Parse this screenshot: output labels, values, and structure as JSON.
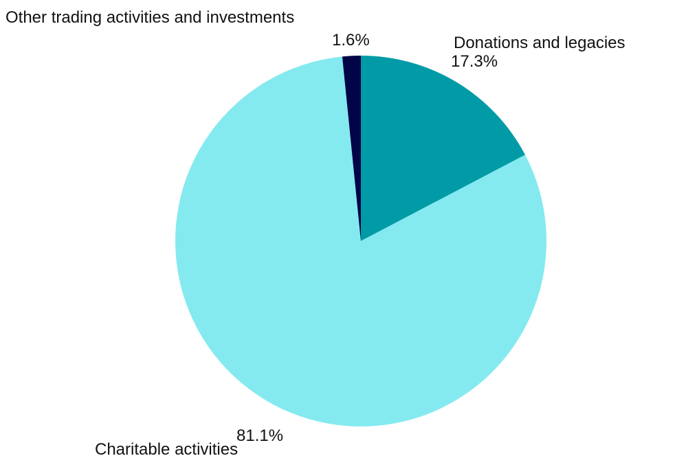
{
  "chart_data": {
    "type": "pie",
    "title": "",
    "start_angle_deg": 0,
    "direction": "clockwise",
    "slices": [
      {
        "name": "Donations and legacies",
        "value": 17.3,
        "label": "17.3%",
        "color": "#009BA6"
      },
      {
        "name": "Charitable activities",
        "value": 81.1,
        "label": "81.1%",
        "color": "#84EAF0"
      },
      {
        "name": "Other trading activities and investments",
        "value": 1.6,
        "label": "1.6%",
        "color": "#000548"
      }
    ]
  }
}
